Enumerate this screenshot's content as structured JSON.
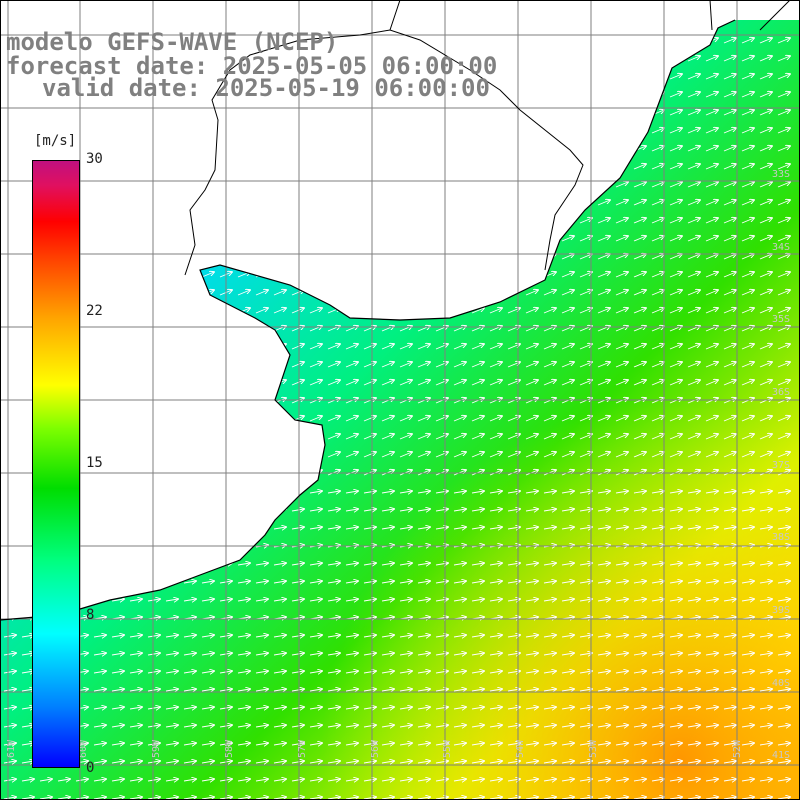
{
  "title": {
    "line1": "modelo GEFS-WAVE (NCEP)",
    "line2": "forecast date: 2025-05-05 06:00:00",
    "line3": "valid date: 2025-05-19 06:00:00"
  },
  "colorbar": {
    "unit": "[m/s]",
    "ticks": [
      "30",
      "22",
      "15",
      "8",
      "0"
    ],
    "min": 0,
    "max": 30
  },
  "axes": {
    "lat_labels": [
      "33S",
      "34S",
      "35S",
      "36S",
      "37S",
      "38S",
      "39S",
      "40S",
      "41S"
    ],
    "lon_labels": [
      "61W",
      "60W",
      "59W",
      "58W",
      "57W",
      "56W",
      "55W",
      "54W",
      "53W",
      "52W"
    ]
  },
  "colors": {
    "land": "#ffffff",
    "coast": "#000000",
    "grid": "#7f7f7f",
    "arrows": "#ffffff",
    "title_text": "#808080"
  }
}
